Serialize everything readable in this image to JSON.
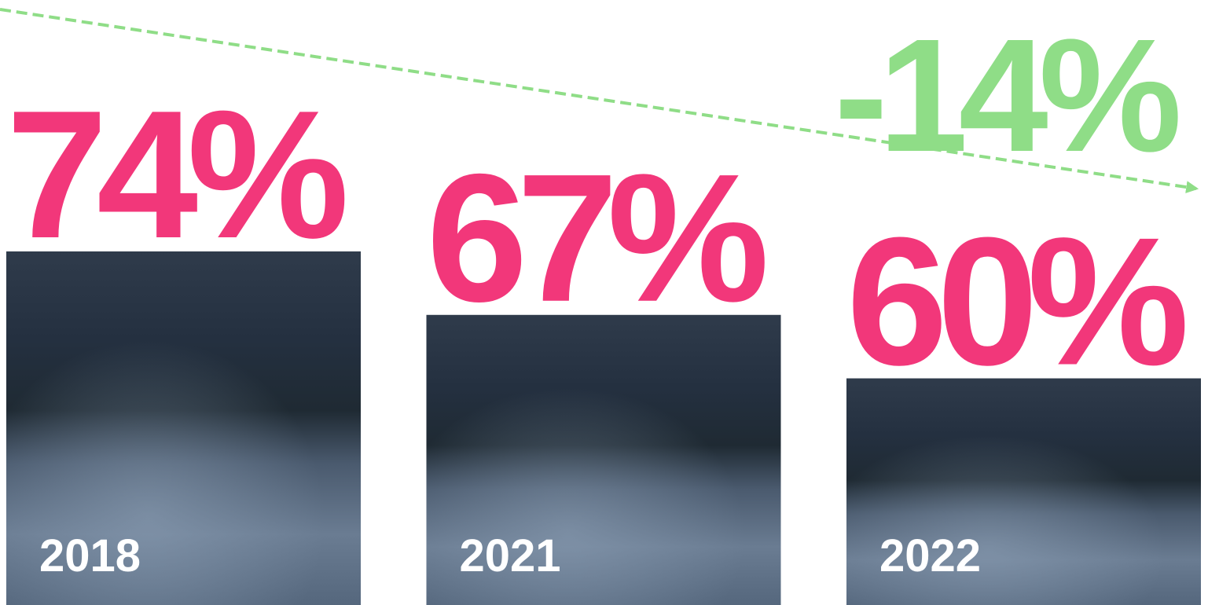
{
  "chart_data": {
    "type": "bar",
    "categories": [
      "2018",
      "2021",
      "2022"
    ],
    "values": [
      74,
      67,
      60
    ],
    "value_labels": [
      "74%",
      "67%",
      "60%"
    ],
    "annotation": "-14%",
    "color": "#f2377a",
    "annotation_color": "#8fdd87",
    "ylim": [
      35,
      100
    ]
  }
}
